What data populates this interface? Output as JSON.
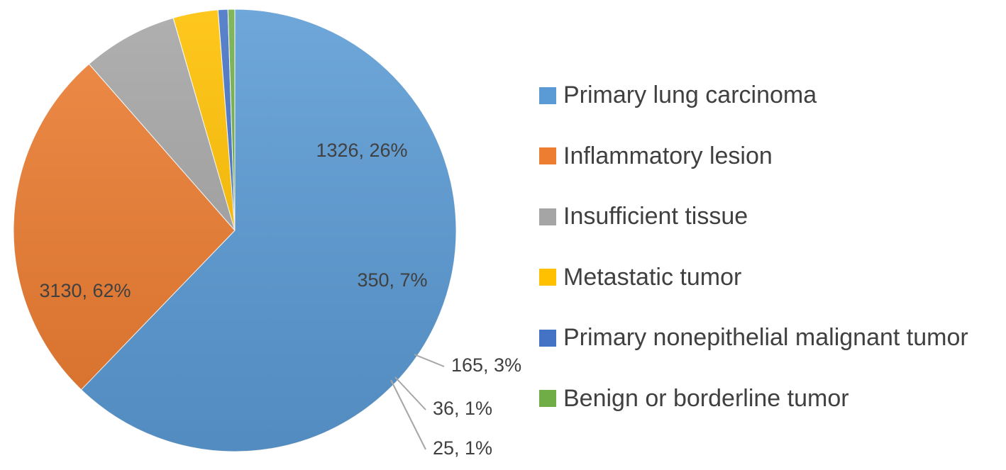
{
  "chart_data": {
    "type": "pie",
    "categories": [
      "Primary lung carcinoma",
      "Inflammatory lesion",
      "Insufficient tissue",
      "Metastatic tumor",
      "Primary nonepithelial malignant tumor",
      "Benign or borderline tumor"
    ],
    "values": [
      3130,
      1326,
      350,
      165,
      36,
      25
    ],
    "data_labels": [
      "3130, 62%",
      "1326, 26%",
      "350, 7%",
      "165, 3%",
      "36, 1%",
      "25, 1%"
    ],
    "colors": [
      "#5B9BD5",
      "#ED7D31",
      "#A5A5A5",
      "#FFC000",
      "#4472C4",
      "#70AD47"
    ],
    "legend_position": "right",
    "start_angle_deg": 0,
    "direction": "clockwise"
  }
}
